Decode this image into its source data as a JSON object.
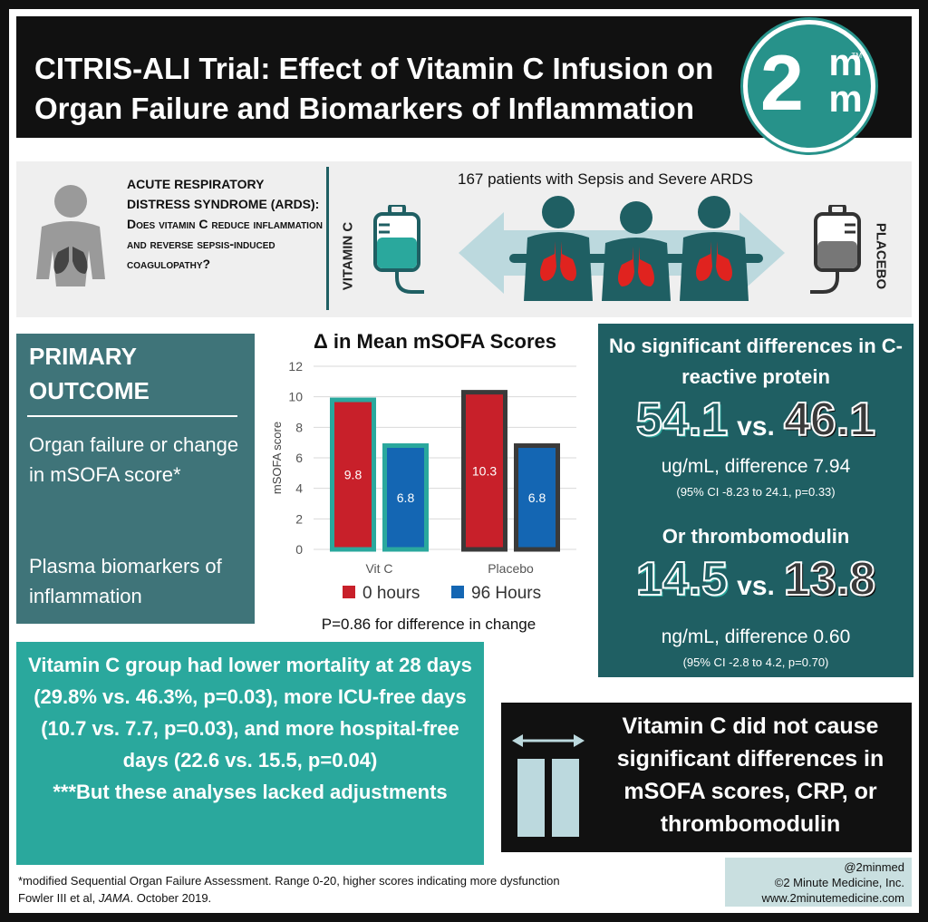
{
  "header": {
    "title": "CITRIS-ALI Trial: Effect of Vitamin C Infusion on Organ Failure and Biomarkers of Inflammation",
    "logo_main": "2",
    "logo_m_top": "m",
    "logo_m_bottom": "m",
    "logo_tm": "TM"
  },
  "ards": {
    "heading": "ACUTE RESPIRATORY DISTRESS SYNDROME (ARDS):",
    "question": "Does vitamin C reduce inflammation and reverse sepsis-induced coagulopathy?",
    "patients": "167 patients with Sepsis and Severe ARDS",
    "left_arm": "VITAMIN C",
    "right_arm": "PLACEBO"
  },
  "primary": {
    "heading": "PRIMARY OUTCOME",
    "outcome1": "Organ failure or change in mSOFA score*",
    "outcome2": "Plasma biomarkers of inflammation"
  },
  "chart_data": {
    "type": "bar",
    "title": "Δ in Mean mSOFA Scores",
    "ylabel": "mSOFA score",
    "xlabel": "",
    "categories": [
      "Vit C",
      "Placebo"
    ],
    "series": [
      {
        "name": "0 hours",
        "values": [
          9.8,
          10.3
        ],
        "color": "#c8202a"
      },
      {
        "name": "96 Hours",
        "values": [
          6.8,
          6.8
        ],
        "color": "#1466b3"
      }
    ],
    "ylim": [
      0,
      12
    ],
    "yticks": [
      0,
      2,
      4,
      6,
      8,
      10,
      12
    ],
    "grid": true,
    "legend": "bottom",
    "note": "P=0.86 for difference in change",
    "border_colors": [
      "#2aa89d",
      "#3a3a3a"
    ]
  },
  "crp": {
    "heading": "No significant differences in C-reactive protein",
    "val1": "54.1",
    "vs": "vs.",
    "val2": "46.1",
    "unit": "ug/mL, difference 7.94",
    "ci": "(95% CI -8.23 to 24.1, p=0.33)"
  },
  "tm": {
    "heading": "Or thrombomodulin",
    "val1": "14.5",
    "vs": "vs.",
    "val2": "13.8",
    "unit": "ng/mL, difference 0.60",
    "ci": "(95% CI -2.8 to 4.2, p=0.70)"
  },
  "mortality": {
    "text": "Vitamin C group had lower mortality at 28 days (29.8% vs. 46.3%, p=0.03), more ICU-free days (10.7 vs. 7.7, p=0.03), and more hospital-free days (22.6 vs. 15.5, p=0.04)",
    "caveat": "***But these analyses lacked adjustments"
  },
  "conclusion": {
    "text": "Vitamin C did not cause significant differences in mSOFA scores, CRP, or thrombomodulin"
  },
  "footer": {
    "line1": "*modified Sequential Organ Failure Assessment. Range 0-20, higher scores indicating more dysfunction",
    "line2_prefix": "Fowler III et al, ",
    "journal": "JAMA",
    "line2_suffix": ". October 2019.",
    "handle": "@2minmed",
    "copyright": "©2 Minute Medicine, Inc.",
    "website": "www.2minutemedicine.com"
  },
  "colors": {
    "teal_dark": "#1f5f63",
    "teal": "#2aa89d",
    "slate": "#3f7479",
    "red": "#c8202a",
    "blue": "#1466b3"
  }
}
